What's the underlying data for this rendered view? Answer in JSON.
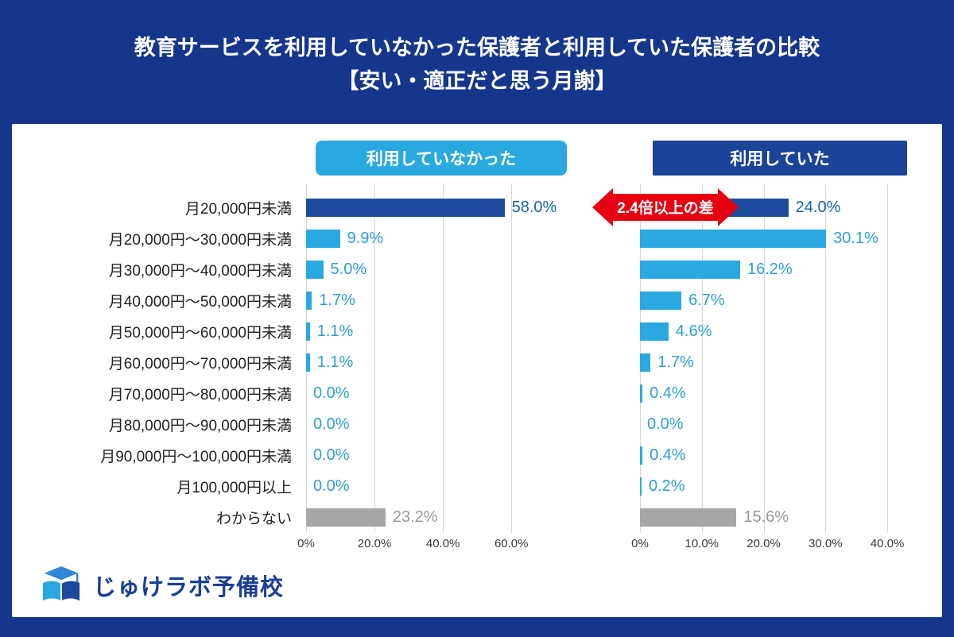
{
  "title": {
    "line1": "教育サービスを利用していなかった保護者と利用していた保護者の比較",
    "line2": "【安い・適正だと思う月謝】"
  },
  "annotation": {
    "text": "2.4倍以上の差"
  },
  "logo": {
    "text": "じゅけラボ予備校"
  },
  "colors": {
    "background": "#16368C",
    "bar_dark": "#1C4A9D",
    "bar_light": "#29A9E0",
    "bar_gray": "#A7A7A7",
    "label_dark": "#1765AF",
    "label_light": "#2D9FD8",
    "label_gray": "#999999",
    "badge_left": "#29A9E0",
    "badge_right": "#1B4397",
    "annotation_red": "#E60012"
  },
  "chart_data": {
    "type": "bar",
    "orientation": "horizontal",
    "title": "教育サービスを利用していなかった保護者と利用していた保護者の比較【安い・適正だと思う月謝】",
    "categories": [
      "月20,000円未満",
      "月20,000円〜30,000円未満",
      "月30,000円〜40,000円未満",
      "月40,000円〜50,000円未満",
      "月50,000円〜60,000円未満",
      "月60,000円〜70,000円未満",
      "月70,000円〜80,000円未満",
      "月80,000円〜90,000円未満",
      "月90,000円〜100,000円未満",
      "月100,000円以上",
      "わからない"
    ],
    "series": [
      {
        "name": "利用していなかった",
        "values": [
          58.0,
          9.9,
          5.0,
          1.7,
          1.1,
          1.1,
          0.0,
          0.0,
          0.0,
          0.0,
          23.2
        ]
      },
      {
        "name": "利用していた",
        "values": [
          24.0,
          30.1,
          16.2,
          6.7,
          4.6,
          1.7,
          0.4,
          0.0,
          0.4,
          0.2,
          15.6
        ]
      }
    ],
    "value_suffix": "%",
    "left_axis": {
      "xlim": [
        0,
        79
      ],
      "ticks": [
        {
          "v": 0,
          "label": "0%"
        },
        {
          "v": 20,
          "label": "20.0%"
        },
        {
          "v": 40,
          "label": "40.0%"
        },
        {
          "v": 60,
          "label": "60.0%"
        }
      ]
    },
    "right_axis": {
      "xlim": [
        0,
        45
      ],
      "ticks": [
        {
          "v": 0,
          "label": "0%"
        },
        {
          "v": 10,
          "label": "10.0%"
        },
        {
          "v": 20,
          "label": "20.0%"
        },
        {
          "v": 30,
          "label": "30.0%"
        },
        {
          "v": 40,
          "label": "40.0%"
        }
      ]
    },
    "grid": true,
    "legend_position": "top"
  }
}
